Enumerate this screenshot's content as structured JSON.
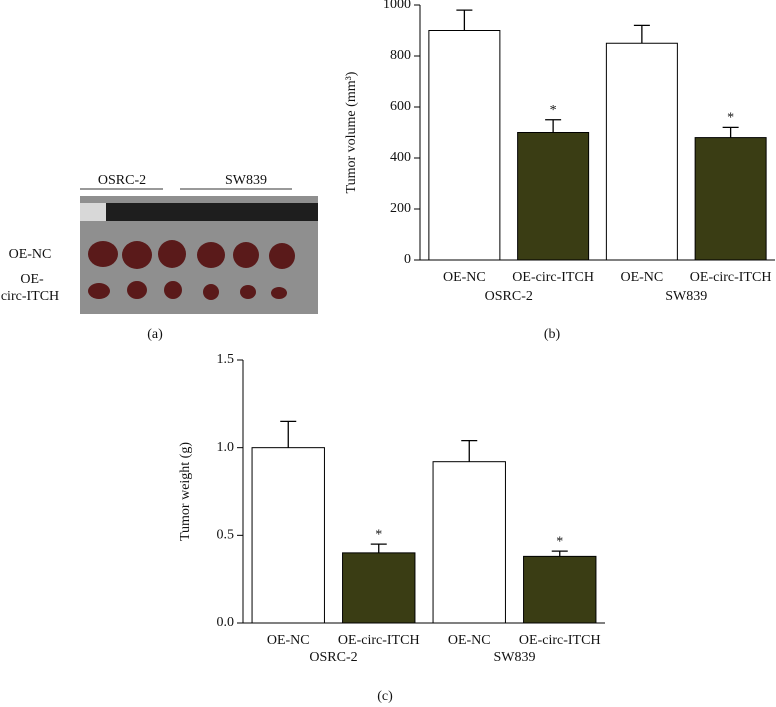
{
  "figure_a": {
    "panel_label": "(a)",
    "column_labels": [
      "OSRC-2",
      "SW839"
    ],
    "row_labels": [
      "OE-NC",
      [
        "OE-",
        "circ-ITCH"
      ]
    ]
  },
  "chart_data": [
    {
      "type": "bar",
      "panel_label": "(b)",
      "y_label": "Tumor volume (mm³)",
      "categories": [
        "OE-NC",
        "OE-circ-ITCH",
        "OE-NC",
        "OE-circ-ITCH"
      ],
      "groups": [
        "OSRC-2",
        "SW839"
      ],
      "values": [
        900,
        500,
        850,
        480
      ],
      "errors": [
        80,
        50,
        70,
        40
      ],
      "colors": [
        "#ffffff",
        "#3a3d14",
        "#ffffff",
        "#3a3d14"
      ],
      "annotations": [
        {
          "index": 1,
          "text": "*"
        },
        {
          "index": 3,
          "text": "*"
        }
      ],
      "ylim": [
        0,
        1000
      ],
      "yticks": [
        0,
        200,
        400,
        600,
        800,
        1000
      ]
    },
    {
      "type": "bar",
      "panel_label": "(c)",
      "y_label": "Tumor weight (g)",
      "categories": [
        "OE-NC",
        "OE-circ-ITCH",
        "OE-NC",
        "OE-circ-ITCH"
      ],
      "groups": [
        "OSRC-2",
        "SW839"
      ],
      "values": [
        1.0,
        0.4,
        0.92,
        0.38
      ],
      "errors": [
        0.15,
        0.05,
        0.12,
        0.03
      ],
      "colors": [
        "#ffffff",
        "#3a3d14",
        "#ffffff",
        "#3a3d14"
      ],
      "annotations": [
        {
          "index": 1,
          "text": "*"
        },
        {
          "index": 3,
          "text": "*"
        }
      ],
      "ylim": [
        0,
        1.5
      ],
      "yticks": [
        {
          "value": 0,
          "label": "0.0"
        },
        {
          "value": 0.5,
          "label": "0.5"
        },
        {
          "value": 1,
          "label": "1.0"
        },
        {
          "value": 1.5,
          "label": "1.5"
        }
      ]
    }
  ]
}
